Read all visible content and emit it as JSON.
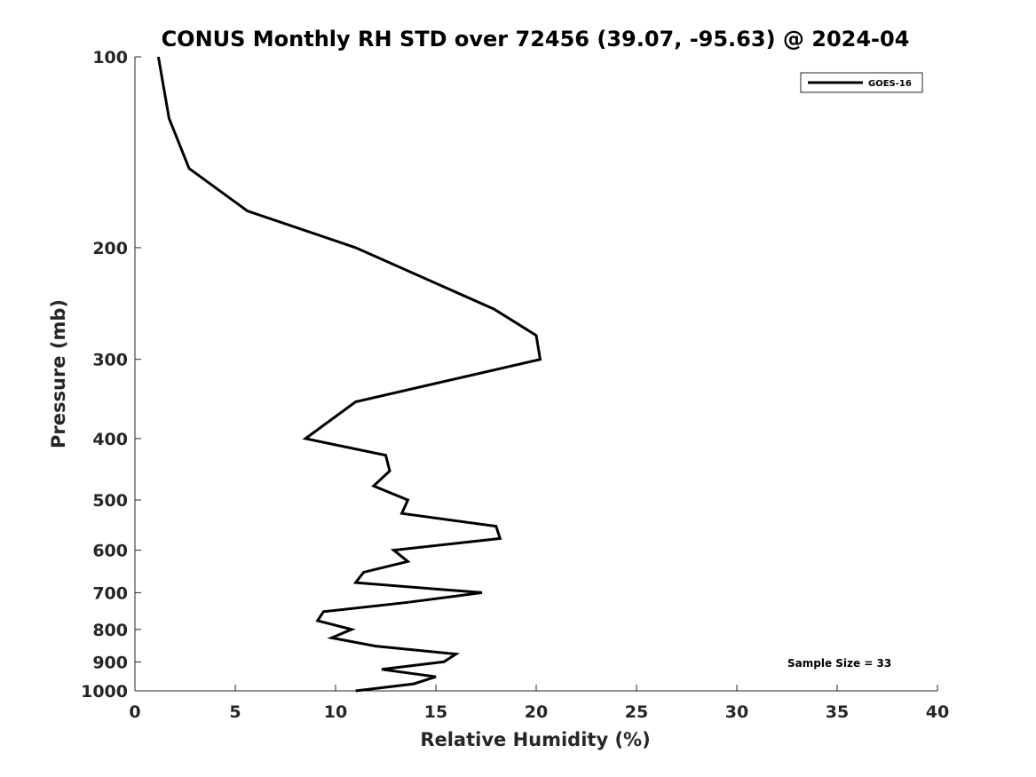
{
  "chart_data": {
    "type": "line",
    "title": "CONUS Monthly RH STD over 72456 (39.07, -95.63) @ 2024-04",
    "xlabel": "Relative Humidity (%)",
    "ylabel": "Pressure (mb)",
    "xlim": [
      0,
      40
    ],
    "ylim": [
      100,
      1000
    ],
    "y_scale": "log",
    "y_reversed": true,
    "x_ticks": [
      0,
      5,
      10,
      15,
      20,
      25,
      30,
      35,
      40
    ],
    "y_ticks": [
      100,
      200,
      300,
      400,
      500,
      600,
      700,
      800,
      900,
      1000
    ],
    "grid": false,
    "legend": {
      "placement": "top-right",
      "entries": [
        "GOES-16"
      ]
    },
    "annotation": "Sample Size = 33",
    "series": [
      {
        "name": "GOES-16",
        "color": "#000000",
        "points": [
          {
            "rh": 1.17,
            "p": 100
          },
          {
            "rh": 1.7,
            "p": 125
          },
          {
            "rh": 2.7,
            "p": 150
          },
          {
            "rh": 5.6,
            "p": 175
          },
          {
            "rh": 11.0,
            "p": 200
          },
          {
            "rh": 17.9,
            "p": 250
          },
          {
            "rh": 20.0,
            "p": 275
          },
          {
            "rh": 20.2,
            "p": 300
          },
          {
            "rh": 11.0,
            "p": 350
          },
          {
            "rh": 8.5,
            "p": 400
          },
          {
            "rh": 12.5,
            "p": 425
          },
          {
            "rh": 12.7,
            "p": 450
          },
          {
            "rh": 11.9,
            "p": 475
          },
          {
            "rh": 13.6,
            "p": 500
          },
          {
            "rh": 13.3,
            "p": 525
          },
          {
            "rh": 18.0,
            "p": 550
          },
          {
            "rh": 18.2,
            "p": 575
          },
          {
            "rh": 12.9,
            "p": 600
          },
          {
            "rh": 13.6,
            "p": 625
          },
          {
            "rh": 11.4,
            "p": 650
          },
          {
            "rh": 11.0,
            "p": 675
          },
          {
            "rh": 17.3,
            "p": 700
          },
          {
            "rh": 13.6,
            "p": 725
          },
          {
            "rh": 9.4,
            "p": 750
          },
          {
            "rh": 9.1,
            "p": 775
          },
          {
            "rh": 10.8,
            "p": 800
          },
          {
            "rh": 9.8,
            "p": 825
          },
          {
            "rh": 12.0,
            "p": 850
          },
          {
            "rh": 16.0,
            "p": 875
          },
          {
            "rh": 15.4,
            "p": 900
          },
          {
            "rh": 12.3,
            "p": 925
          },
          {
            "rh": 15.0,
            "p": 950
          },
          {
            "rh": 13.9,
            "p": 975
          },
          {
            "rh": 11.0,
            "p": 1000
          }
        ]
      }
    ]
  }
}
